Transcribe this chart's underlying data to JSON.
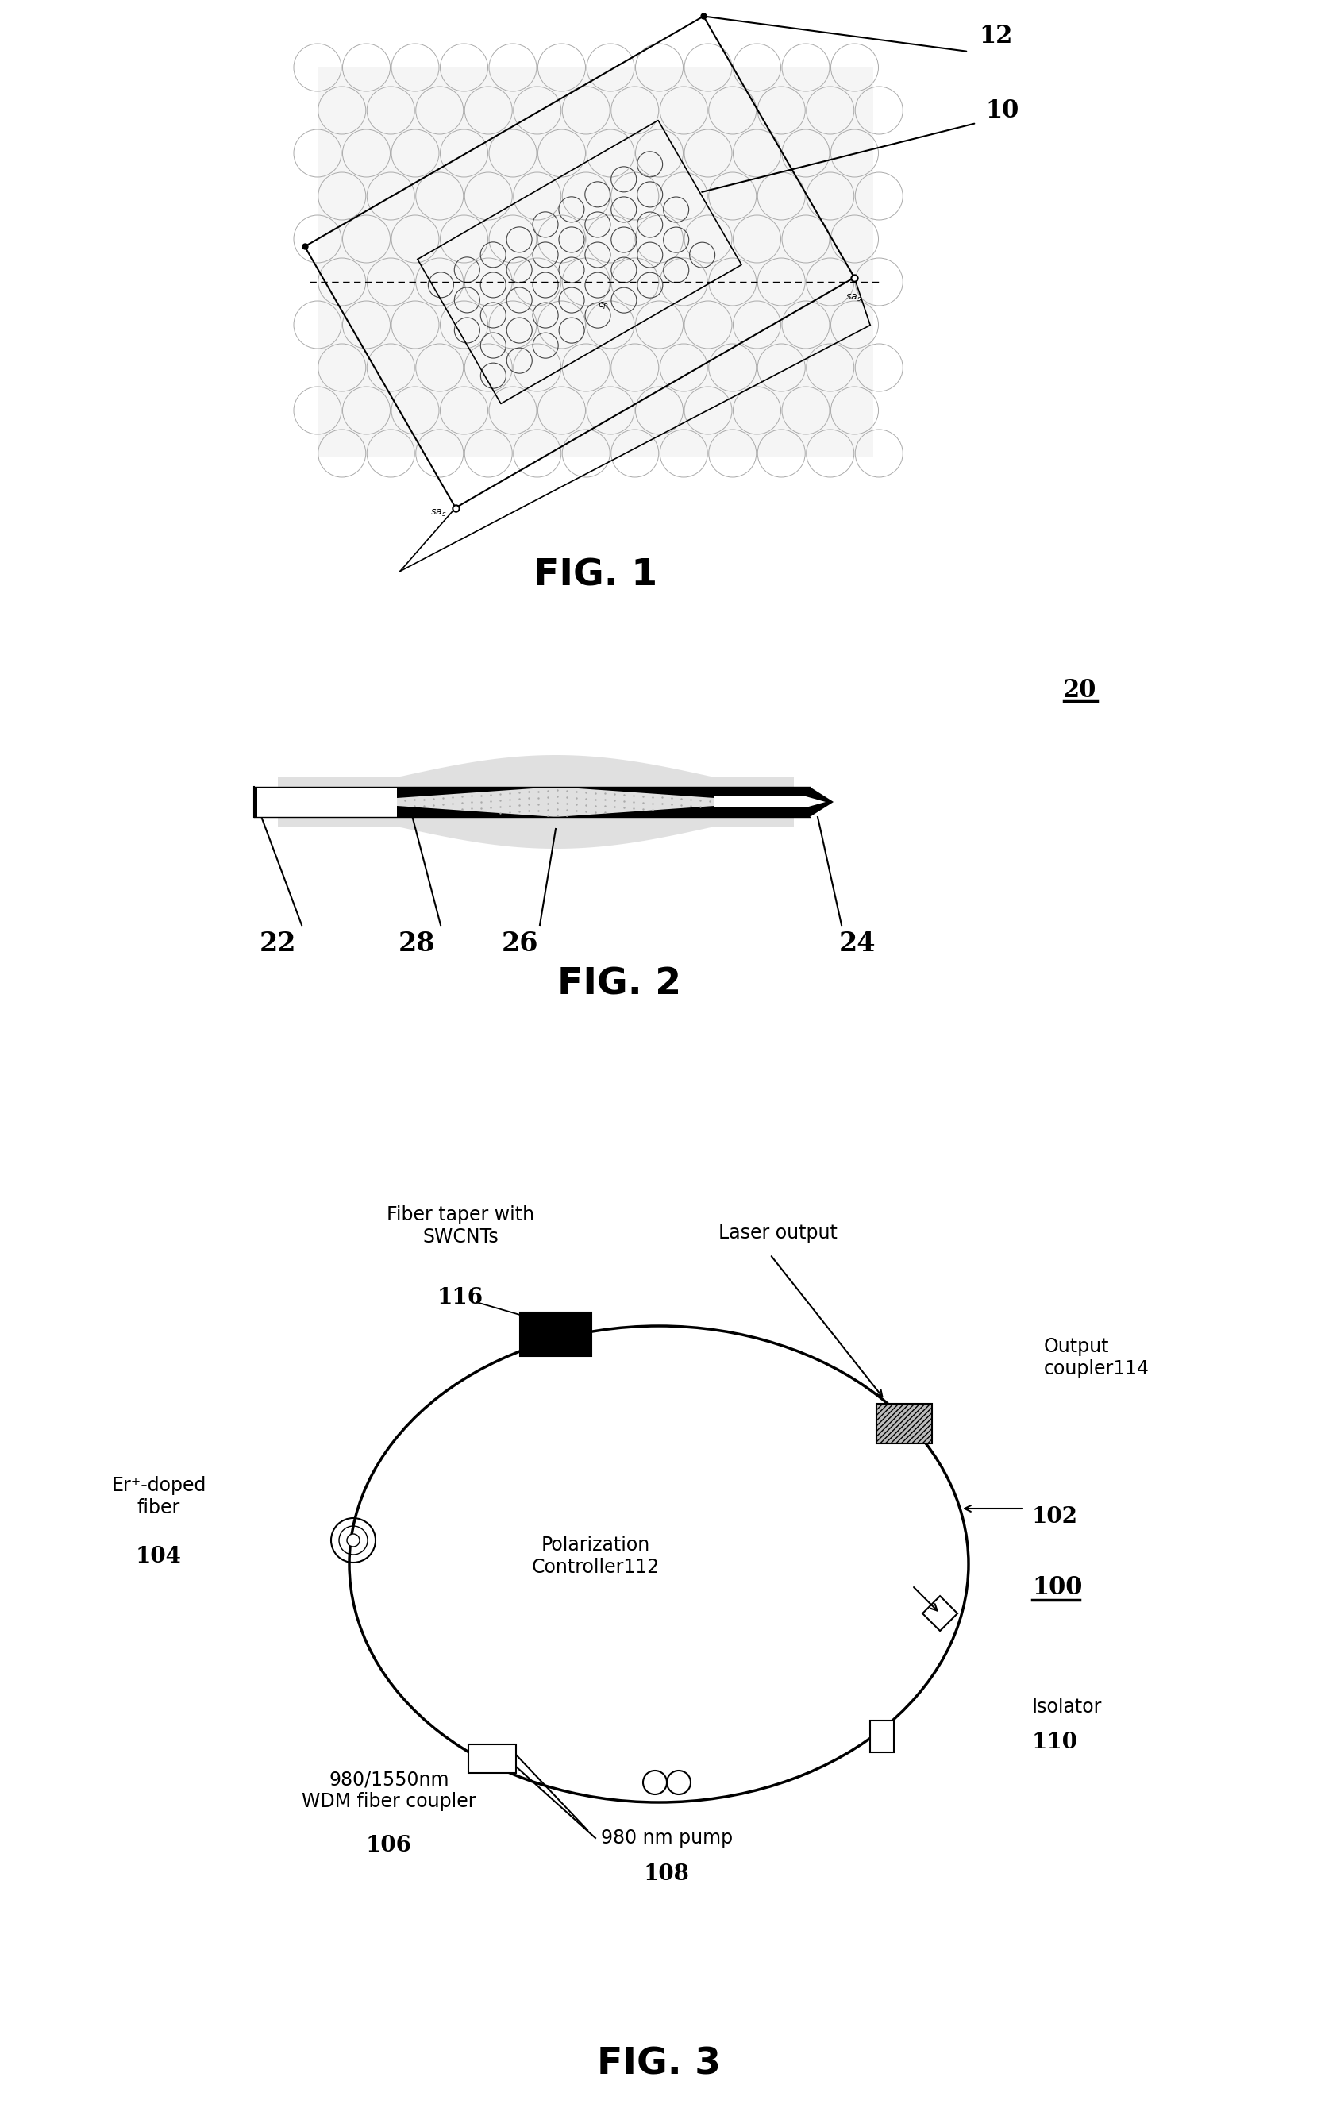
{
  "fig1_label": "FIG. 1",
  "fig2_label": "FIG. 2",
  "fig3_label": "FIG. 3",
  "ref_12": "12",
  "ref_10": "10",
  "ref_20": "20",
  "ref_22": "22",
  "ref_24": "24",
  "ref_26": "26",
  "ref_28": "28",
  "ref_100": "100",
  "ref_102": "102",
  "ref_104": "104",
  "ref_106": "106",
  "ref_108": "108",
  "ref_110": "110",
  "ref_112": "112",
  "ref_114": "114",
  "ref_116": "116",
  "label_fiber_taper": "Fiber taper with\nSWCNTs",
  "label_laser_output": "Laser output",
  "label_output_coupler": "Output\ncoupler",
  "label_er_doped": "Er⁺-doped\nfiber",
  "label_pol_controller": "Polarization\nController",
  "label_wdm": "980/1550nm\nWDM fiber coupler",
  "label_pump": "980 nm pump",
  "label_isolator": "Isolator",
  "bg_color": "#ffffff",
  "black": "#000000",
  "gray_dot": "#bbbbbb",
  "gray_med": "#888888"
}
